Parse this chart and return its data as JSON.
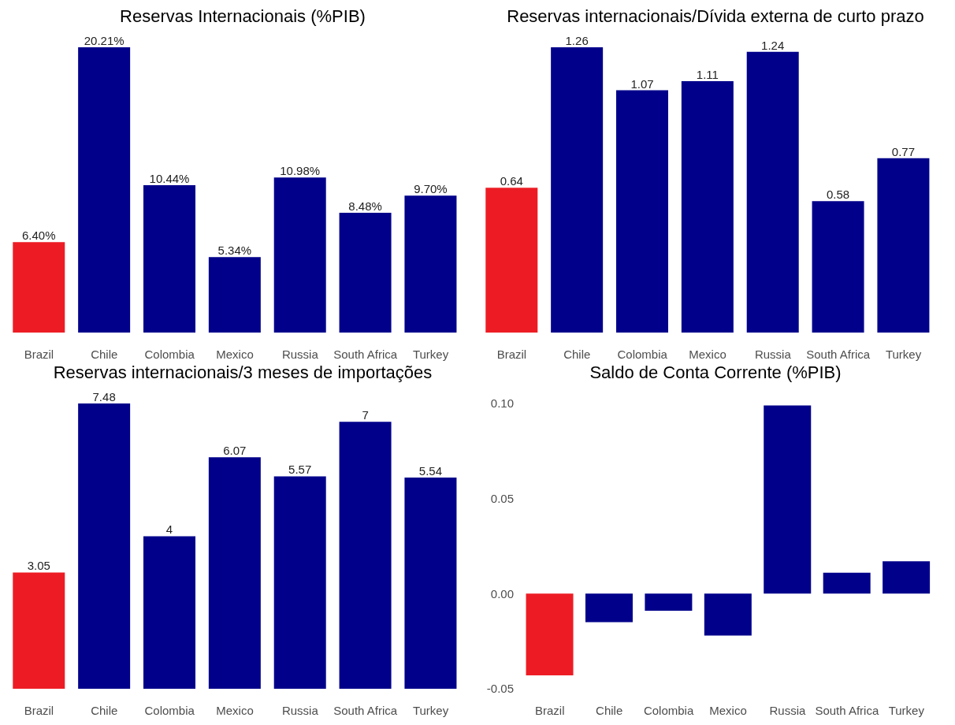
{
  "chart_data": [
    {
      "type": "bar",
      "title": "Reservas Internacionais (%PIB)",
      "categories": [
        "Brazil",
        "Chile",
        "Colombia",
        "Mexico",
        "Russia",
        "South Africa",
        "Turkey"
      ],
      "values": [
        6.4,
        20.21,
        10.44,
        5.34,
        10.98,
        8.48,
        9.7
      ],
      "value_labels": [
        "6.40%",
        "20.21%",
        "10.44%",
        "5.34%",
        "10.98%",
        "8.48%",
        "9.70%"
      ],
      "colors": [
        "#ed1c24",
        "#00008b",
        "#00008b",
        "#00008b",
        "#00008b",
        "#00008b",
        "#00008b"
      ],
      "tick_labels": "x"
    },
    {
      "type": "bar",
      "title": "Reservas internacionais/Dívida externa de curto prazo",
      "categories": [
        "Brazil",
        "Chile",
        "Colombia",
        "Mexico",
        "Russia",
        "South Africa",
        "Turkey"
      ],
      "values": [
        0.64,
        1.26,
        1.07,
        1.11,
        1.24,
        0.58,
        0.77
      ],
      "data_labels": true,
      "colors": [
        "#ed1c24",
        "#00008b",
        "#00008b",
        "#00008b",
        "#00008b",
        "#00008b",
        "#00008b"
      ],
      "tick_labels": "x"
    },
    {
      "type": "bar",
      "title": "Reservas internacionais/3 meses de importações",
      "categories": [
        "Brazil",
        "Chile",
        "Colombia",
        "Mexico",
        "Russia",
        "South Africa",
        "Turkey"
      ],
      "values": [
        3.05,
        7.48,
        4,
        6.07,
        5.57,
        7,
        5.54
      ],
      "data_labels": true,
      "colors": [
        "#ed1c24",
        "#00008b",
        "#00008b",
        "#00008b",
        "#00008b",
        "#00008b",
        "#00008b"
      ],
      "tick_labels": "x"
    },
    {
      "type": "bar",
      "title": "Saldo de Conta Corrente (%PIB)",
      "categories": [
        "Brazil",
        "Chile",
        "Colombia",
        "Mexico",
        "Russia",
        "South Africa",
        "Turkey"
      ],
      "values": [
        -0.043,
        -0.015,
        -0.009,
        -0.022,
        0.099,
        0.011,
        0.017
      ],
      "colors": [
        "#ed1c24",
        "#00008b",
        "#00008b",
        "#00008b",
        "#00008b",
        "#00008b",
        "#00008b"
      ],
      "ylim": [
        -0.05,
        0.1
      ],
      "yticks": [
        {
          "value": -0.05,
          "label": "-0.05"
        },
        {
          "value": 0,
          "label": "0.00"
        },
        {
          "value": 0.05,
          "label": "0.05"
        },
        {
          "value": 0.1,
          "label": "0.10"
        }
      ]
    }
  ]
}
